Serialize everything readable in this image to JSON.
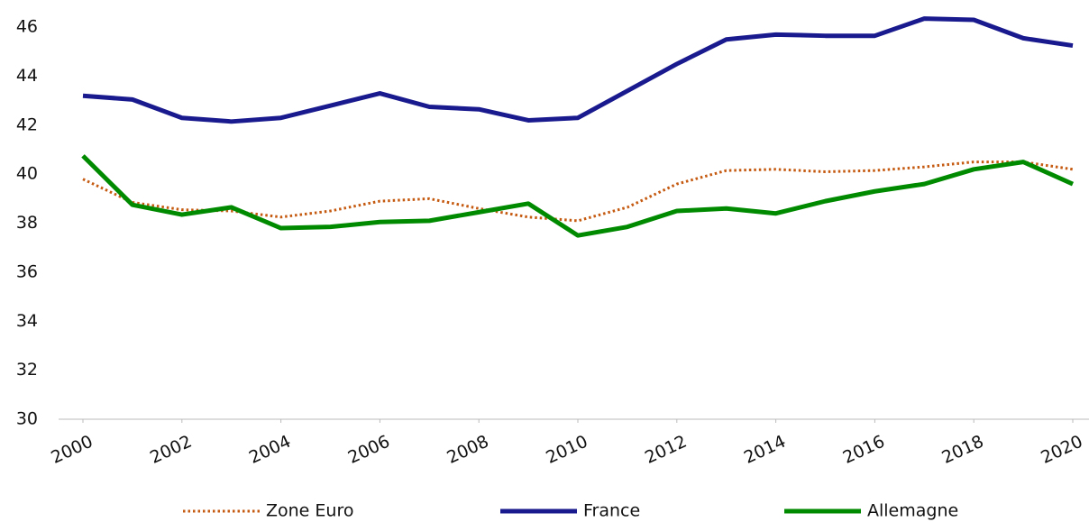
{
  "chart_data": {
    "type": "line",
    "x": [
      2000,
      2001,
      2002,
      2003,
      2004,
      2005,
      2006,
      2007,
      2008,
      2009,
      2010,
      2011,
      2012,
      2013,
      2014,
      2015,
      2016,
      2017,
      2018,
      2019,
      2020
    ],
    "xlim": [
      2000,
      2020
    ],
    "xticks": [
      2000,
      2002,
      2004,
      2006,
      2008,
      2010,
      2012,
      2014,
      2016,
      2018,
      2020
    ],
    "ylim": [
      30,
      47
    ],
    "yticks": [
      30,
      32,
      34,
      36,
      38,
      40,
      42,
      44,
      46
    ],
    "legend": "bottom",
    "series": [
      {
        "name": "Zone Euro",
        "color": "#c55a11",
        "style": "dotted",
        "values": [
          39.8,
          38.85,
          38.55,
          38.5,
          38.25,
          38.5,
          38.9,
          39.0,
          38.6,
          38.25,
          38.1,
          38.65,
          39.6,
          40.15,
          40.2,
          40.1,
          40.15,
          40.3,
          40.5,
          40.5,
          40.2
        ]
      },
      {
        "name": "France",
        "color": "#1a1a8f",
        "style": "solid",
        "values": [
          43.2,
          43.05,
          42.3,
          42.15,
          42.3,
          42.8,
          43.3,
          42.75,
          42.65,
          42.2,
          42.3,
          43.4,
          44.5,
          45.5,
          45.7,
          45.65,
          45.65,
          46.35,
          46.3,
          45.55,
          45.25
        ]
      },
      {
        "name": "Allemagne",
        "color": "#008a00",
        "style": "solid",
        "values": [
          40.75,
          38.75,
          38.35,
          38.65,
          37.8,
          37.85,
          38.05,
          38.1,
          38.45,
          38.8,
          37.5,
          37.85,
          38.5,
          38.6,
          38.4,
          38.9,
          39.3,
          39.6,
          40.2,
          40.5,
          39.6
        ]
      }
    ]
  }
}
